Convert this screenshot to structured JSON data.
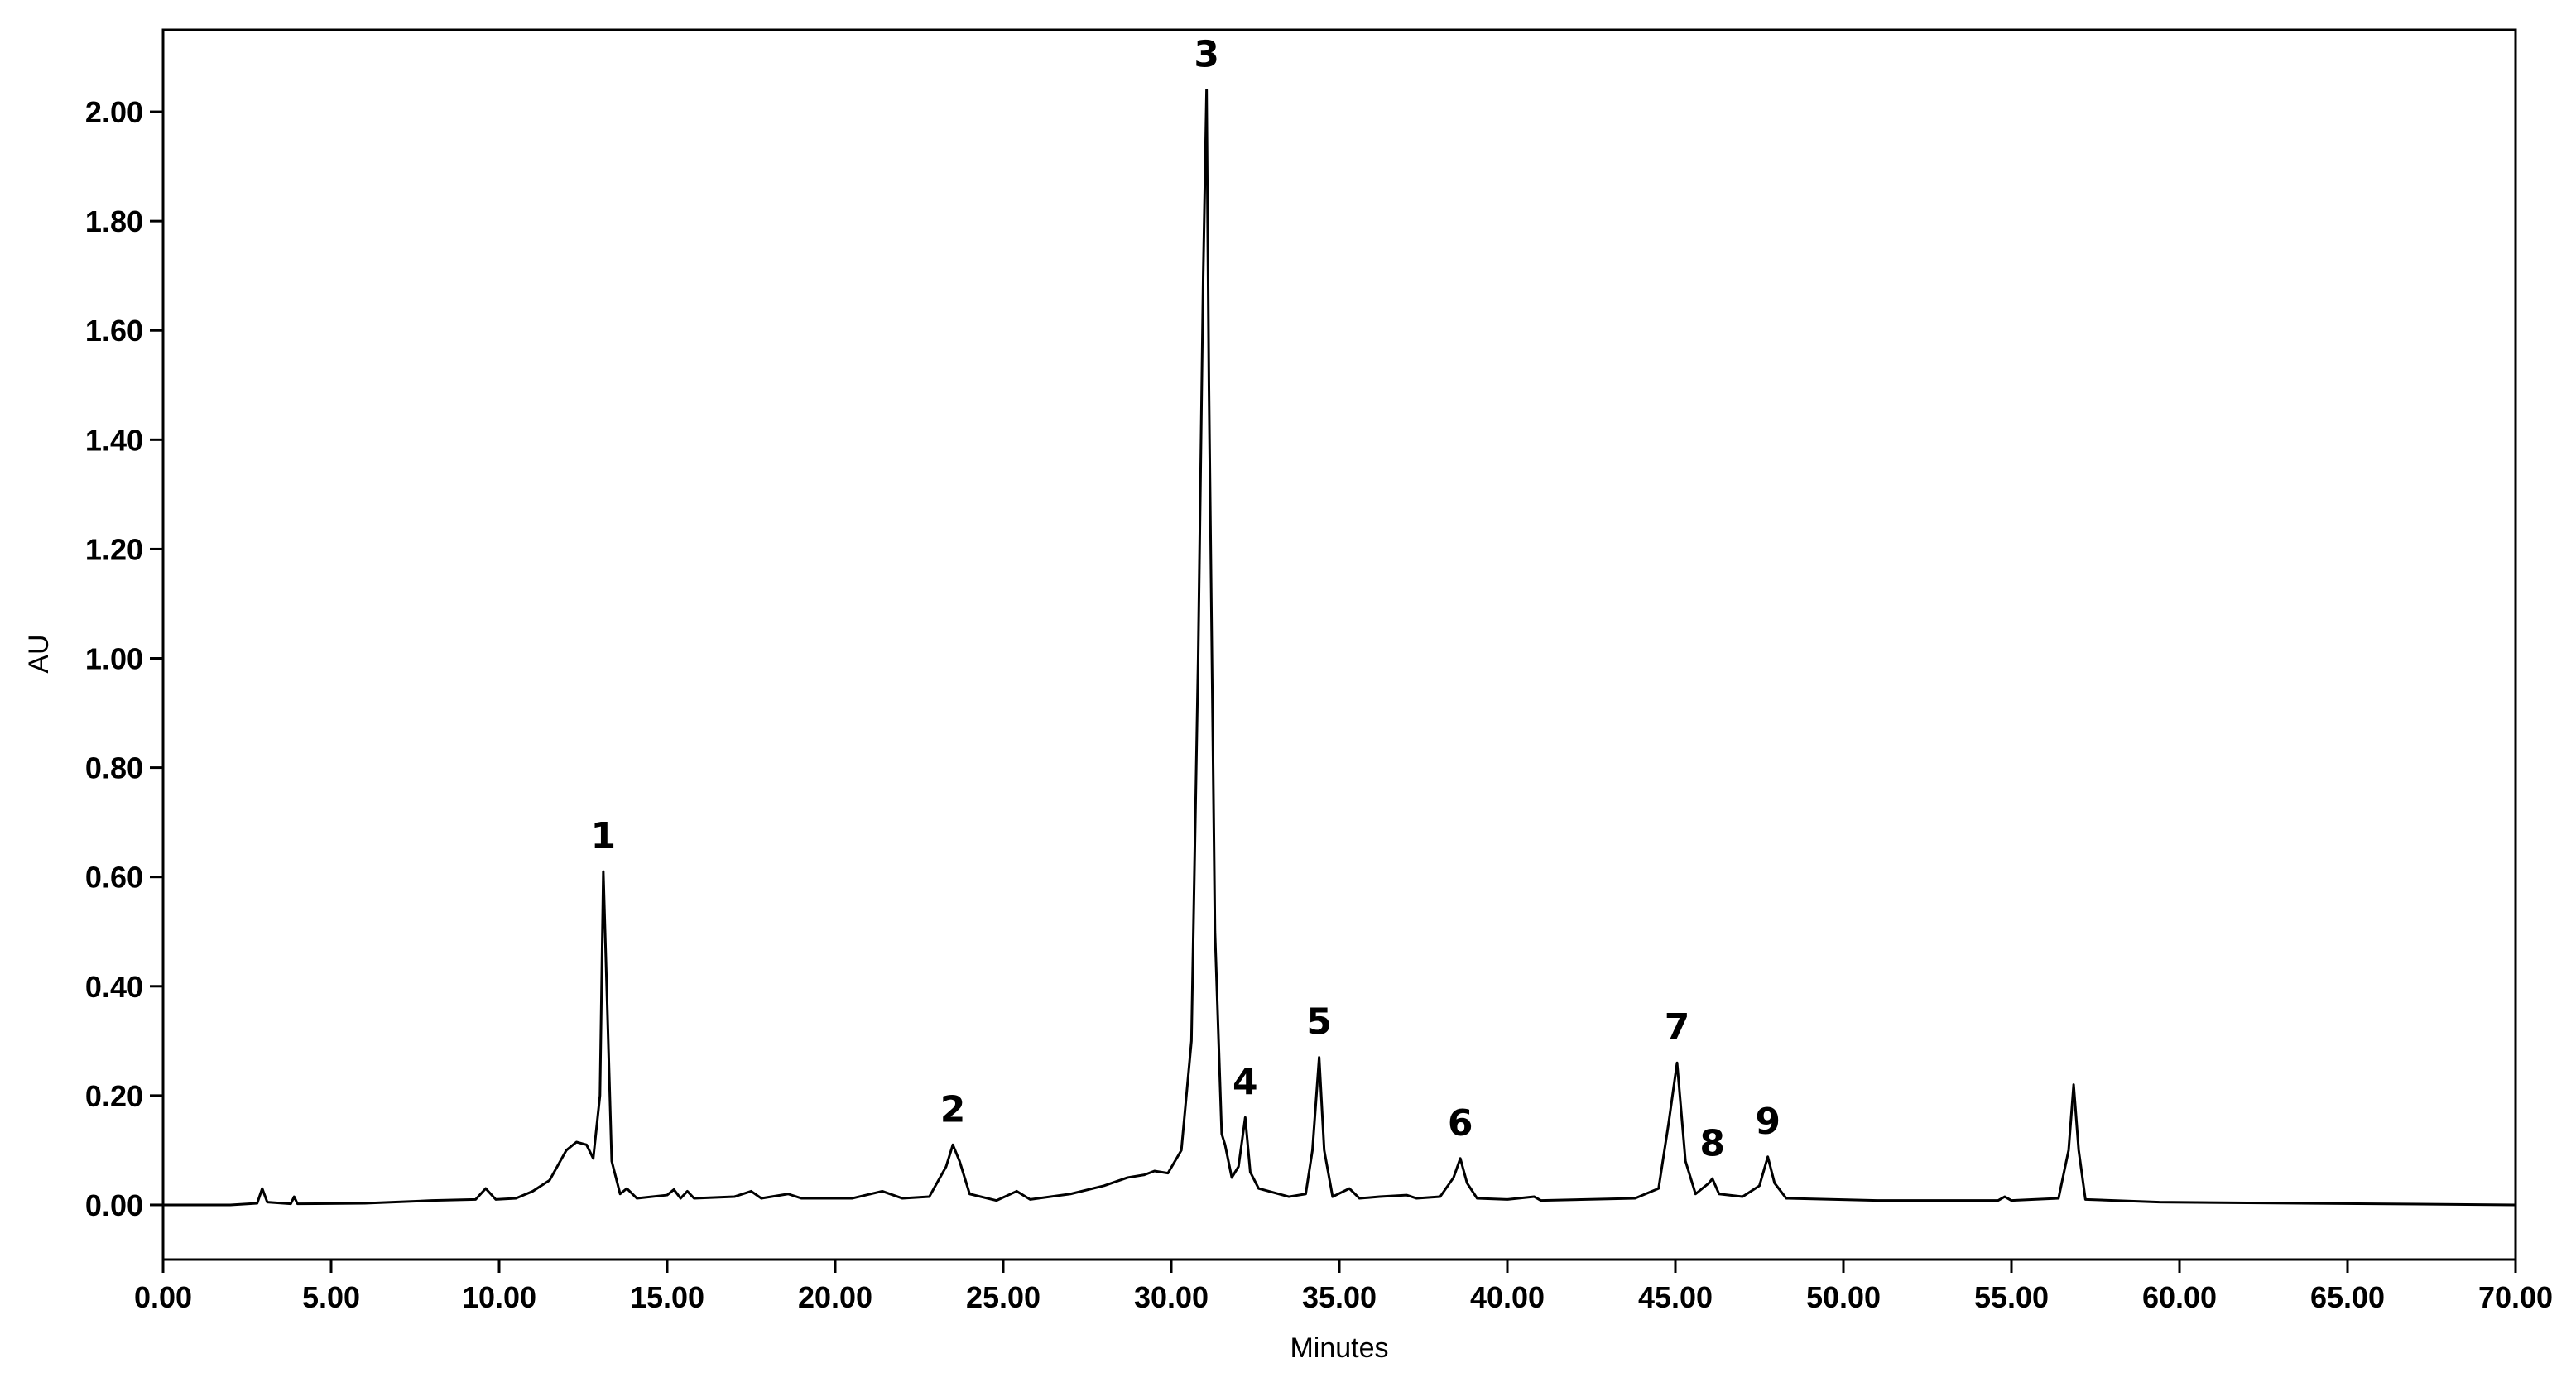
{
  "chart_data": {
    "type": "line",
    "x_label": "Minutes",
    "y_label": "AU",
    "color": "#000000",
    "xlim": [
      0,
      70
    ],
    "ylim": [
      -0.1,
      2.15
    ],
    "xticks": [
      {
        "value": 0,
        "label": "0.00"
      },
      {
        "value": 5,
        "label": "5.00"
      },
      {
        "value": 10,
        "label": "10.00"
      },
      {
        "value": 15,
        "label": "15.00"
      },
      {
        "value": 20,
        "label": "20.00"
      },
      {
        "value": 25,
        "label": "25.00"
      },
      {
        "value": 30,
        "label": "30.00"
      },
      {
        "value": 35,
        "label": "35.00"
      },
      {
        "value": 40,
        "label": "40.00"
      },
      {
        "value": 45,
        "label": "45.00"
      },
      {
        "value": 50,
        "label": "50.00"
      },
      {
        "value": 55,
        "label": "55.00"
      },
      {
        "value": 60,
        "label": "60.00"
      },
      {
        "value": 65,
        "label": "65.00"
      },
      {
        "value": 70,
        "label": "70.00"
      }
    ],
    "yticks": [
      {
        "value": 0,
        "label": "0.00"
      },
      {
        "value": 0.2,
        "label": "0.20"
      },
      {
        "value": 0.4,
        "label": "0.40"
      },
      {
        "value": 0.6,
        "label": "0.60"
      },
      {
        "value": 0.8,
        "label": "0.80"
      },
      {
        "value": 1,
        "label": "1.00"
      },
      {
        "value": 1.2,
        "label": "1.20"
      },
      {
        "value": 1.4,
        "label": "1.40"
      },
      {
        "value": 1.6,
        "label": "1.60"
      },
      {
        "value": 1.8,
        "label": "1.80"
      },
      {
        "value": 2,
        "label": "2.00"
      }
    ],
    "x": [
      0,
      2.0,
      2.8,
      2.95,
      3.1,
      3.8,
      3.9,
      4.0,
      6,
      8,
      9.3,
      9.6,
      9.9,
      10.5,
      11.0,
      11.5,
      12.0,
      12.3,
      12.6,
      12.8,
      13.0,
      13.1,
      13.2,
      13.35,
      13.6,
      13.8,
      14.1,
      15.0,
      15.2,
      15.4,
      15.6,
      15.8,
      17.0,
      17.5,
      17.8,
      18.6,
      19.0,
      20.5,
      21.4,
      22.0,
      22.8,
      23.3,
      23.5,
      23.7,
      24.0,
      24.8,
      25.4,
      25.8,
      27.0,
      28.0,
      28.7,
      29.2,
      29.5,
      29.9,
      30.3,
      30.6,
      30.8,
      30.95,
      31.05,
      31.12,
      31.3,
      31.5,
      31.6,
      31.8,
      32.0,
      32.2,
      32.35,
      32.6,
      33.5,
      34.0,
      34.2,
      34.4,
      34.55,
      34.8,
      35.3,
      35.6,
      36.2,
      37.0,
      37.3,
      38.0,
      38.4,
      38.6,
      38.8,
      39.1,
      40.0,
      40.8,
      41.0,
      43.8,
      44.5,
      44.8,
      45.05,
      45.3,
      45.6,
      46.0,
      46.1,
      46.3,
      47.0,
      47.5,
      47.75,
      47.95,
      48.3,
      51.0,
      54.6,
      54.8,
      55.0,
      56.4,
      56.7,
      56.85,
      57.0,
      57.2,
      59.4,
      70
    ],
    "values": [
      0,
      0,
      0.003,
      0.03,
      0.005,
      0.002,
      0.015,
      0.002,
      0.003,
      0.008,
      0.01,
      0.03,
      0.01,
      0.012,
      0.025,
      0.045,
      0.1,
      0.115,
      0.11,
      0.085,
      0.2,
      0.61,
      0.4,
      0.08,
      0.02,
      0.03,
      0.012,
      0.018,
      0.028,
      0.012,
      0.025,
      0.012,
      0.015,
      0.025,
      0.012,
      0.02,
      0.012,
      0.012,
      0.025,
      0.012,
      0.015,
      0.07,
      0.11,
      0.08,
      0.02,
      0.008,
      0.025,
      0.01,
      0.02,
      0.035,
      0.05,
      0.055,
      0.062,
      0.058,
      0.1,
      0.3,
      1.0,
      1.7,
      2.04,
      1.5,
      0.5,
      0.13,
      0.11,
      0.05,
      0.07,
      0.16,
      0.06,
      0.03,
      0.015,
      0.02,
      0.1,
      0.27,
      0.1,
      0.015,
      0.03,
      0.012,
      0.015,
      0.018,
      0.012,
      0.015,
      0.05,
      0.085,
      0.04,
      0.012,
      0.01,
      0.015,
      0.008,
      0.012,
      0.03,
      0.15,
      0.26,
      0.08,
      0.02,
      0.04,
      0.048,
      0.02,
      0.015,
      0.035,
      0.088,
      0.04,
      0.012,
      0.008,
      0.008,
      0.015,
      0.008,
      0.012,
      0.1,
      0.22,
      0.1,
      0.01,
      0.005,
      0
    ],
    "annotations": [
      {
        "text": "1",
        "x": 13.1,
        "y": 0.61
      },
      {
        "text": "2",
        "x": 23.5,
        "y": 0.11
      },
      {
        "text": "3",
        "x": 31.05,
        "y": 2.04
      },
      {
        "text": "4",
        "x": 32.2,
        "y": 0.16
      },
      {
        "text": "5",
        "x": 34.4,
        "y": 0.27
      },
      {
        "text": "6",
        "x": 38.6,
        "y": 0.085
      },
      {
        "text": "7",
        "x": 45.05,
        "y": 0.26
      },
      {
        "text": "8",
        "x": 46.1,
        "y": 0.048
      },
      {
        "text": "9",
        "x": 47.75,
        "y": 0.088
      }
    ]
  }
}
